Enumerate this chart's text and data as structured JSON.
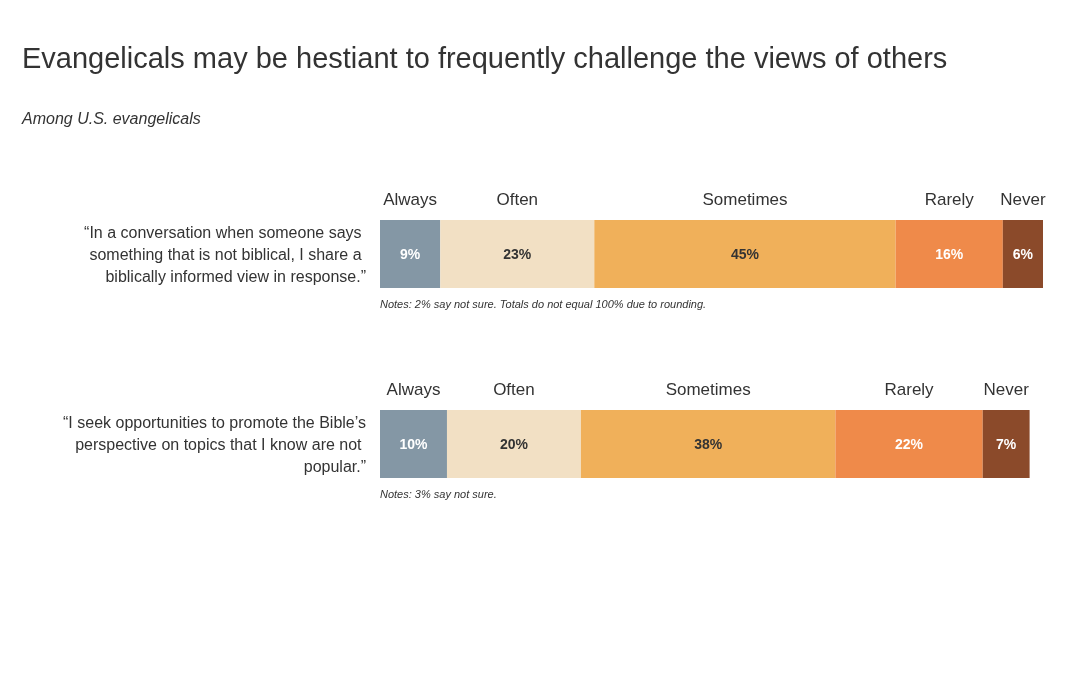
{
  "chart_data": [
    {
      "type": "bar",
      "title": "Evangelicals may be hestiant to frequently challenge the views of others",
      "subtitle": "Among U.S. evangelicals",
      "orientation": "horizontal",
      "stacked": true,
      "categories": [
        "“In a conversation when someone says something that is not biblical, I share a biblically informed view in response.”"
      ],
      "series": [
        {
          "name": "Always",
          "color": "#8497a5",
          "values": [
            9
          ],
          "value_labels": [
            "9%"
          ]
        },
        {
          "name": "Often",
          "color": "#f2e0c4",
          "values": [
            23
          ],
          "value_labels": [
            "23%"
          ]
        },
        {
          "name": "Sometimes",
          "color": "#f0b05a",
          "values": [
            45
          ],
          "value_labels": [
            "45%"
          ]
        },
        {
          "name": "Rarely",
          "color": "#ef8a4a",
          "values": [
            16
          ],
          "value_labels": [
            "16%"
          ]
        },
        {
          "name": "Never",
          "color": "#8b4a2a",
          "values": [
            6
          ],
          "value_labels": [
            "6%"
          ]
        }
      ],
      "annotations": [
        "Notes: 2% say not sure. Totals do not equal 100% due to rounding."
      ]
    },
    {
      "type": "bar",
      "orientation": "horizontal",
      "stacked": true,
      "categories": [
        "“I seek opportunities to promote the Bible’s perspective on topics that I know are not popular.”"
      ],
      "series": [
        {
          "name": "Always",
          "color": "#8497a5",
          "values": [
            10
          ],
          "value_labels": [
            "10%"
          ]
        },
        {
          "name": "Often",
          "color": "#f2e0c4",
          "values": [
            20
          ],
          "value_labels": [
            "20%"
          ]
        },
        {
          "name": "Sometimes",
          "color": "#f0b05a",
          "values": [
            38
          ],
          "value_labels": [
            "38%"
          ]
        },
        {
          "name": "Rarely",
          "color": "#ef8a4a",
          "values": [
            22
          ],
          "value_labels": [
            "22%"
          ]
        },
        {
          "name": "Never",
          "color": "#8b4a2a",
          "values": [
            7
          ],
          "value_labels": [
            "7%"
          ]
        }
      ],
      "annotations": [
        "Notes: 3% say not sure."
      ]
    }
  ]
}
